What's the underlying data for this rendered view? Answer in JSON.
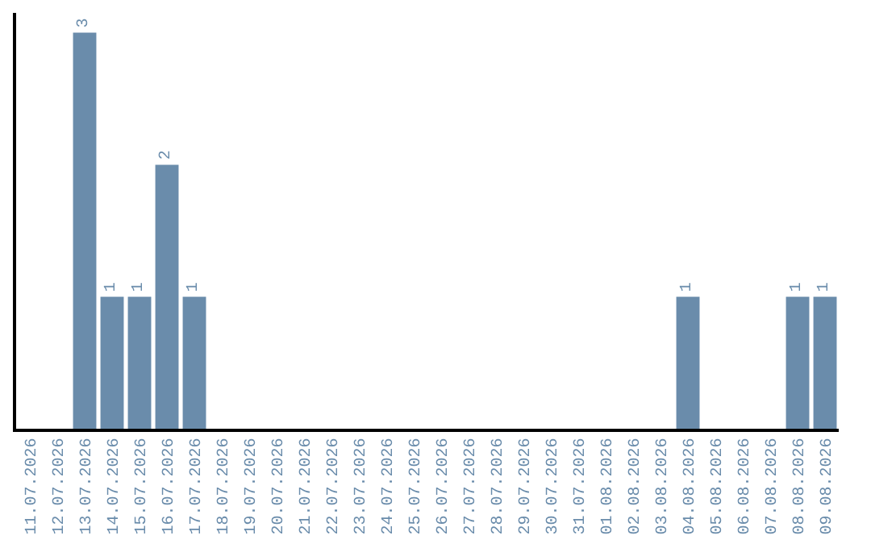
{
  "chart_data": {
    "type": "bar",
    "categories": [
      "11.07.2026",
      "12.07.2026",
      "13.07.2026",
      "14.07.2026",
      "15.07.2026",
      "16.07.2026",
      "17.07.2026",
      "18.07.2026",
      "19.07.2026",
      "20.07.2026",
      "21.07.2026",
      "22.07.2026",
      "23.07.2026",
      "24.07.2026",
      "25.07.2026",
      "26.07.2026",
      "27.07.2026",
      "28.07.2026",
      "29.07.2026",
      "30.07.2026",
      "31.07.2026",
      "01.08.2026",
      "02.08.2026",
      "03.08.2026",
      "04.08.2026",
      "05.08.2026",
      "06.08.2026",
      "07.08.2026",
      "08.08.2026",
      "09.08.2026"
    ],
    "values": [
      0,
      0,
      3,
      1,
      1,
      2,
      1,
      0,
      0,
      0,
      0,
      0,
      0,
      0,
      0,
      0,
      0,
      0,
      0,
      0,
      0,
      0,
      0,
      0,
      1,
      0,
      0,
      0,
      1,
      1
    ],
    "value_labels": [
      null,
      null,
      "3",
      "1",
      "1",
      "2",
      "1",
      null,
      null,
      null,
      null,
      null,
      null,
      null,
      null,
      null,
      null,
      null,
      null,
      null,
      null,
      null,
      null,
      null,
      "1",
      null,
      null,
      null,
      "1",
      "1"
    ],
    "color": "#6a8cab",
    "legend": false,
    "tick_labels": "x"
  }
}
